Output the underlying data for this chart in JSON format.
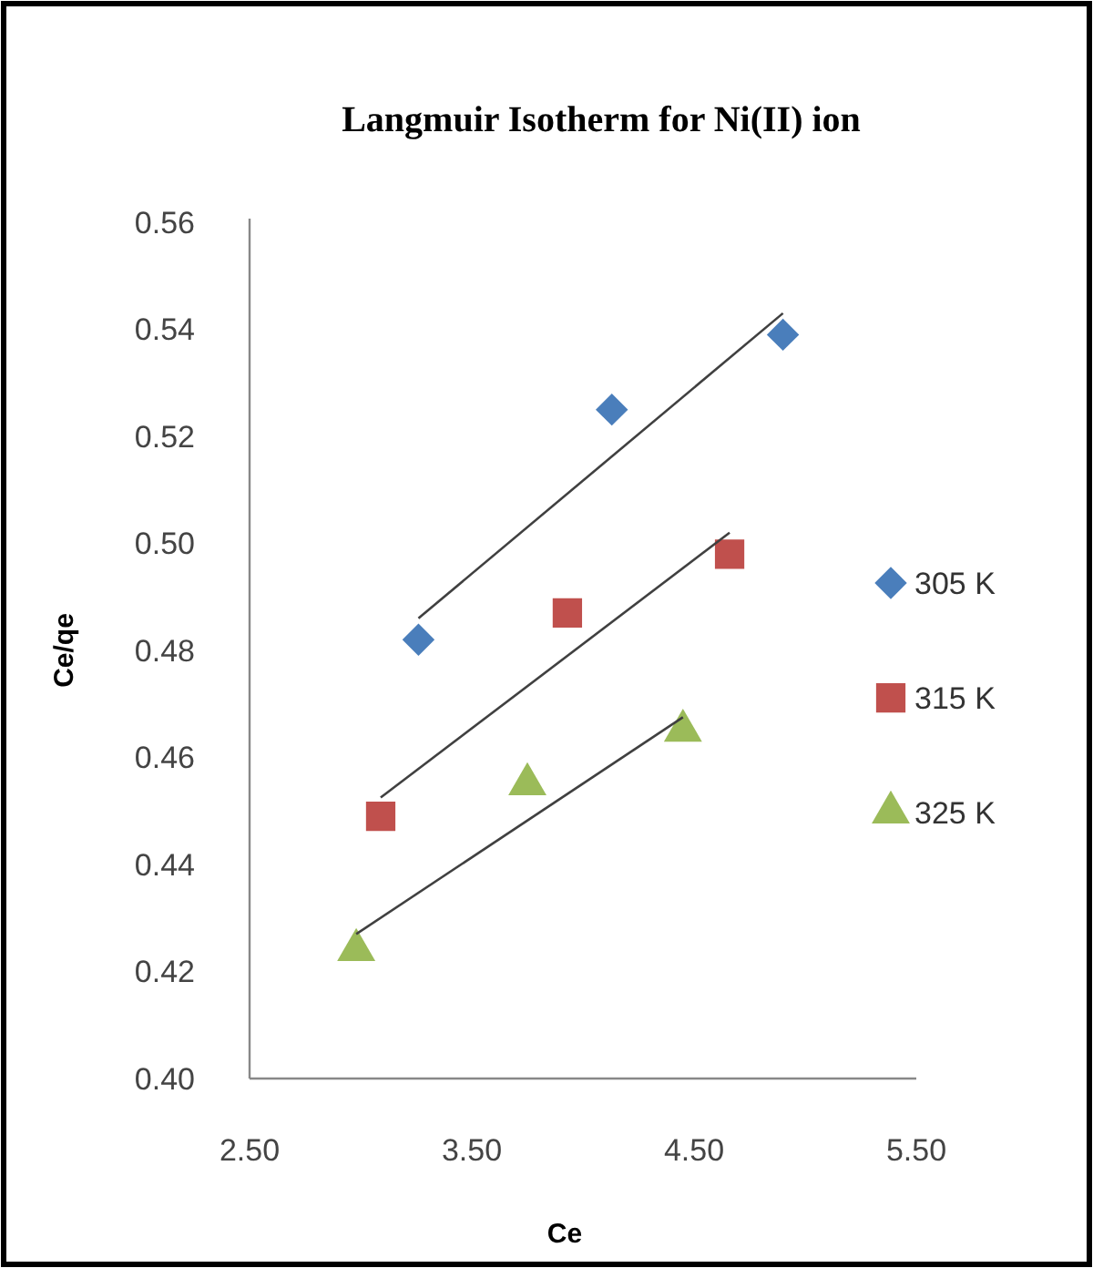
{
  "chart_data": {
    "type": "scatter",
    "title": "Langmuir Isotherm for Ni(II) ion",
    "xlabel": "Ce",
    "ylabel": "Ce/qe",
    "xlim": [
      2.5,
      5.5
    ],
    "xticks": [
      {
        "value": 2.5,
        "label": "2.50"
      },
      {
        "value": 3.5,
        "label": "3.50"
      },
      {
        "value": 4.5,
        "label": "4.50"
      },
      {
        "value": 5.5,
        "label": "5.50"
      }
    ],
    "ylim": [
      0.4,
      0.56
    ],
    "yticks": [
      {
        "value": 0.4,
        "label": "0.40"
      },
      {
        "value": 0.42,
        "label": "0.42"
      },
      {
        "value": 0.44,
        "label": "0.44"
      },
      {
        "value": 0.46,
        "label": "0.46"
      },
      {
        "value": 0.48,
        "label": "0.48"
      },
      {
        "value": 0.5,
        "label": "0.50"
      },
      {
        "value": 0.52,
        "label": "0.52"
      },
      {
        "value": 0.54,
        "label": "0.54"
      },
      {
        "value": 0.56,
        "label": "0.56"
      }
    ],
    "grid": false,
    "legend": "right",
    "series": [
      {
        "name": "305 K",
        "color": "#4a7ebb",
        "marker": "diamond",
        "x": [
          3.26,
          4.13,
          4.9
        ],
        "values": [
          0.482,
          0.525,
          0.539
        ]
      },
      {
        "name": "315 K",
        "color": "#c0504d",
        "marker": "square",
        "x": [
          3.09,
          3.93,
          4.66
        ],
        "values": [
          0.449,
          0.487,
          0.498
        ]
      },
      {
        "name": "325 K",
        "color": "#9bbb59",
        "marker": "triangle",
        "x": [
          2.98,
          3.75,
          4.45
        ],
        "values": [
          0.424,
          0.455,
          0.465
        ]
      },
      {
        "type": "line",
        "color": "#404040",
        "marker": "none",
        "x": [
          3.26,
          4.9
        ],
        "values": [
          0.486,
          0.543
        ]
      },
      {
        "type": "line",
        "color": "#404040",
        "marker": "none",
        "x": [
          3.09,
          4.66
        ],
        "values": [
          0.4525,
          0.502
        ]
      },
      {
        "type": "line",
        "color": "#404040",
        "marker": "none",
        "x": [
          2.98,
          4.45
        ],
        "values": [
          0.427,
          0.4675
        ]
      }
    ]
  }
}
